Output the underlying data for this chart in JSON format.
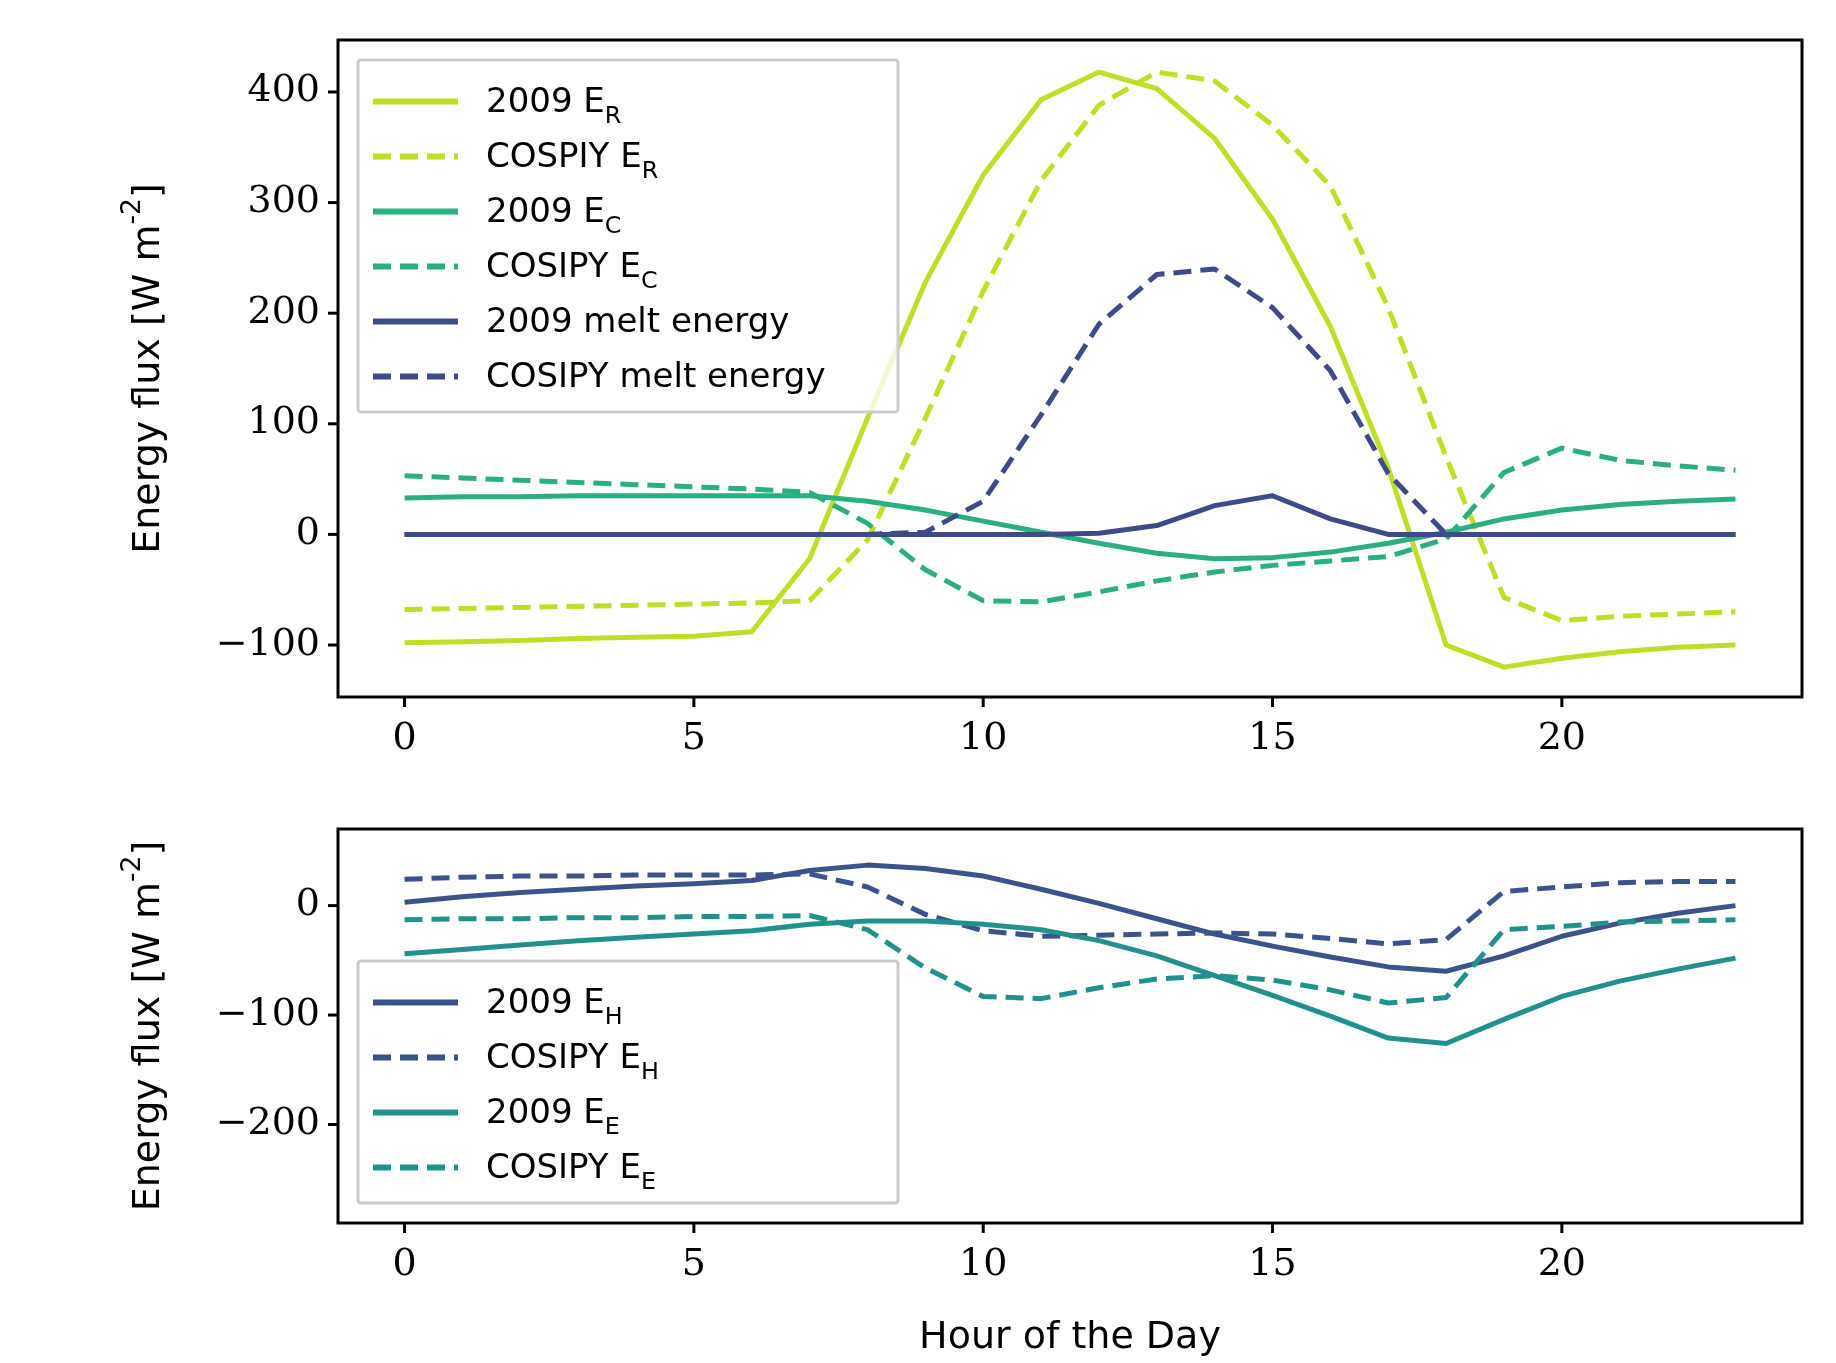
{
  "chart_data": [
    {
      "type": "line",
      "ylabel": "Energy flux [W m$^{-2}$]",
      "x": [
        0,
        1,
        2,
        3,
        4,
        5,
        6,
        7,
        8,
        9,
        10,
        11,
        12,
        13,
        14,
        15,
        16,
        17,
        18,
        19,
        20,
        21,
        22,
        23
      ],
      "xlim": [
        -1.15,
        24.15
      ],
      "xticks": [
        0,
        5,
        10,
        15,
        20
      ],
      "ylim": [
        -147,
        447
      ],
      "yticks": [
        -100,
        0,
        100,
        200,
        300,
        400
      ],
      "legend": "top left",
      "grid": false,
      "marker": "none",
      "series": [
        {
          "name": "2009 E$_{R}$",
          "color": "#bddf26",
          "line_style": "solid",
          "values": [
            -98,
            -97,
            -96,
            -94,
            -93,
            -92,
            -88,
            -22,
            105,
            228,
            325,
            393,
            418,
            403,
            358,
            285,
            188,
            60,
            -100,
            -120,
            -112,
            -106,
            -102,
            -100
          ]
        },
        {
          "name": "COSPIY E$_{R}$",
          "color": "#bddf26",
          "line_style": "dashed",
          "values": [
            -68,
            -67,
            -66,
            -65,
            -64,
            -63,
            -62,
            -60,
            -5,
            105,
            220,
            320,
            388,
            418,
            410,
            370,
            315,
            205,
            70,
            -57,
            -78,
            -74,
            -72,
            -70
          ]
        },
        {
          "name": "2009 E$_{C}$",
          "color": "#2ab07f",
          "line_style": "solid",
          "values": [
            33,
            34,
            34,
            35,
            35,
            35,
            35,
            35,
            30,
            22,
            12,
            2,
            -8,
            -17,
            -22,
            -21,
            -16,
            -8,
            2,
            14,
            22,
            27,
            30,
            32
          ]
        },
        {
          "name": "COSIPY E$_{C}$",
          "color": "#2ab07f",
          "line_style": "dashed",
          "values": [
            53,
            51,
            49,
            47,
            45,
            43,
            41,
            38,
            10,
            -32,
            -60,
            -61,
            -52,
            -42,
            -34,
            -28,
            -24,
            -20,
            -4,
            56,
            78,
            67,
            62,
            58
          ]
        },
        {
          "name": "2009 melt energy",
          "color": "#3e4a89",
          "line_style": "solid",
          "values": [
            0,
            0,
            0,
            0,
            0,
            0,
            0,
            0,
            0,
            0,
            0,
            0,
            1,
            8,
            26,
            35,
            14,
            0,
            0,
            0,
            0,
            0,
            0,
            0
          ]
        },
        {
          "name": "COSIPY melt energy",
          "color": "#3e4a89",
          "line_style": "dashed",
          "values": [
            0,
            0,
            0,
            0,
            0,
            0,
            0,
            0,
            0,
            2,
            30,
            108,
            190,
            235,
            240,
            205,
            148,
            55,
            0,
            0,
            0,
            0,
            0,
            0
          ]
        }
      ]
    },
    {
      "type": "line",
      "ylabel": "Energy flux [W m$^{-2}$]",
      "xlabel": "Hour of the Day",
      "x": [
        0,
        1,
        2,
        3,
        4,
        5,
        6,
        7,
        8,
        9,
        10,
        11,
        12,
        13,
        14,
        15,
        16,
        17,
        18,
        19,
        20,
        21,
        22,
        23
      ],
      "xlim": [
        -1.15,
        24.15
      ],
      "xticks": [
        0,
        5,
        10,
        15,
        20
      ],
      "ylim": [
        -290,
        70
      ],
      "yticks": [
        -200,
        -100,
        0
      ],
      "legend": "bottom left",
      "grid": false,
      "marker": "none",
      "series": [
        {
          "name": "2009 E$_{H}$",
          "color": "#3b528b",
          "line_style": "solid",
          "values": [
            3,
            8,
            12,
            15,
            18,
            20,
            23,
            32,
            37,
            34,
            27,
            15,
            2,
            -12,
            -26,
            -37,
            -47,
            -56,
            -60,
            -46,
            -28,
            -16,
            -7,
            0
          ]
        },
        {
          "name": "COSIPY E$_{H}$",
          "color": "#3b528b",
          "line_style": "dashed",
          "values": [
            24,
            26,
            27,
            27,
            28,
            28,
            28,
            29,
            17,
            -8,
            -23,
            -28,
            -27,
            -26,
            -25,
            -26,
            -30,
            -35,
            -31,
            13,
            17,
            21,
            22,
            22
          ]
        },
        {
          "name": "2009 E$_{E}$",
          "color": "#21918c",
          "line_style": "solid",
          "values": [
            -44,
            -40,
            -36,
            -32,
            -29,
            -26,
            -23,
            -17,
            -14,
            -14,
            -17,
            -22,
            -32,
            -46,
            -64,
            -82,
            -101,
            -121,
            -126,
            -104,
            -83,
            -69,
            -58,
            -48
          ]
        },
        {
          "name": "COSIPY E$_{E}$",
          "color": "#21918c",
          "line_style": "dashed",
          "values": [
            -13,
            -12,
            -12,
            -11,
            -11,
            -10,
            -10,
            -9,
            -22,
            -57,
            -83,
            -85,
            -75,
            -67,
            -64,
            -68,
            -77,
            -89,
            -84,
            -22,
            -19,
            -15,
            -14,
            -13
          ]
        }
      ]
    }
  ]
}
